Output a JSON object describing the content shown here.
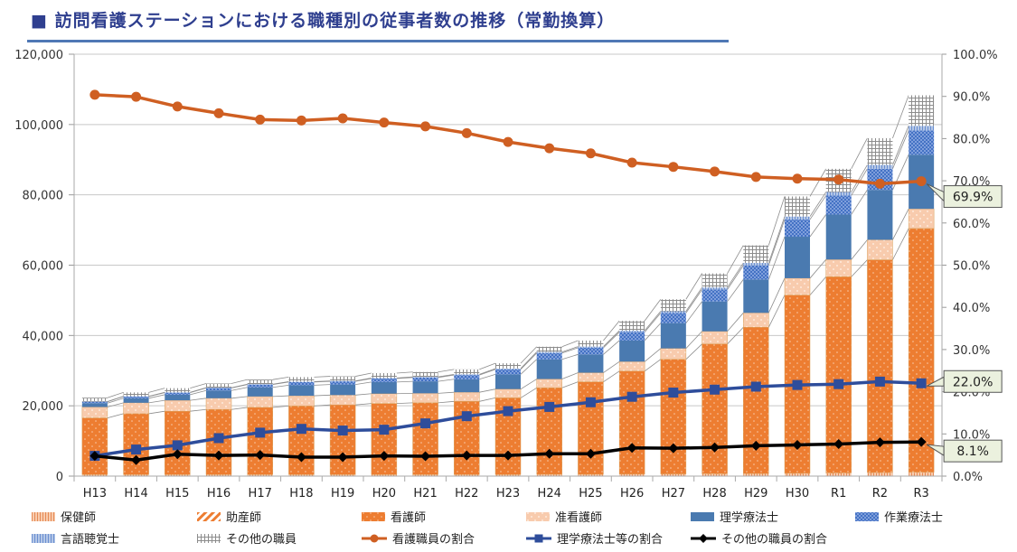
{
  "header": {
    "title": "■ 訪問看護ステーションにおける職種別の従事者数の推移（常勤換算）"
  },
  "chart_data": {
    "type": "bar",
    "title": "訪問看護ステーションにおける職種別の従事者数の推移（常勤換算）",
    "xlabel": "",
    "ylabel": "",
    "ylim": [
      0,
      120000
    ],
    "y2lim": [
      0,
      1.0
    ],
    "grid": true,
    "legend_position": "bottom",
    "y_ticks": [
      "0",
      "20,000",
      "40,000",
      "60,000",
      "80,000",
      "100,000",
      "120,000"
    ],
    "y2_ticks": [
      "0.0%",
      "10.0%",
      "20.0%",
      "30.0%",
      "40.0%",
      "50.0%",
      "60.0%",
      "70.0%",
      "80.0%",
      "90.0%",
      "100.0%"
    ],
    "categories": [
      "H13",
      "H14",
      "H15",
      "H16",
      "H17",
      "H18",
      "H19",
      "H20",
      "H21",
      "H22",
      "H23",
      "H24",
      "H25",
      "H26",
      "H27",
      "H28",
      "H29",
      "H30",
      "R1",
      "R2",
      "R3"
    ],
    "bar_series": [
      {
        "name": "保健師",
        "color": "#f4b183",
        "pattern": "vlines",
        "values": [
          400,
          400,
          400,
          400,
          400,
          400,
          400,
          400,
          400,
          400,
          400,
          450,
          450,
          500,
          550,
          600,
          650,
          700,
          800,
          900,
          1000
        ]
      },
      {
        "name": "助産師",
        "color": "#ed7d31",
        "pattern": "diag",
        "values": [
          50,
          50,
          50,
          50,
          50,
          50,
          50,
          50,
          50,
          50,
          50,
          60,
          60,
          60,
          70,
          70,
          80,
          90,
          100,
          110,
          120
        ]
      },
      {
        "name": "看護師",
        "color": "#ed7d31",
        "pattern": "dots",
        "values": [
          16100,
          17300,
          18000,
          18500,
          19100,
          19500,
          19800,
          20200,
          20400,
          20800,
          21800,
          24600,
          26300,
          29300,
          32600,
          36900,
          41600,
          50700,
          55800,
          60500,
          69300
        ]
      },
      {
        "name": "准看護師",
        "color": "#f8cbad",
        "pattern": "dots",
        "values": [
          3100,
          3100,
          3100,
          3200,
          3100,
          2900,
          2800,
          2800,
          2700,
          2600,
          2500,
          2500,
          2600,
          2700,
          3100,
          3600,
          4100,
          4800,
          4900,
          5700,
          5600
        ]
      },
      {
        "name": "理学療法士",
        "color": "#4a7ab0",
        "pattern": "solid",
        "values": [
          1100,
          1300,
          1600,
          2200,
          2600,
          3000,
          3000,
          3300,
          3400,
          3700,
          4200,
          5600,
          5200,
          6000,
          7200,
          8500,
          9500,
          11800,
          12800,
          14200,
          15400
        ]
      },
      {
        "name": "作業療法士",
        "color": "#4472c4",
        "pattern": "checker",
        "values": [
          400,
          500,
          600,
          700,
          800,
          900,
          900,
          1000,
          1100,
          1200,
          1400,
          1800,
          1900,
          2400,
          2900,
          3400,
          4000,
          4900,
          5400,
          6000,
          6900
        ]
      },
      {
        "name": "言語聴覚士",
        "color": "#8faadc",
        "pattern": "vlines",
        "values": [
          50,
          60,
          70,
          90,
          100,
          120,
          130,
          150,
          170,
          200,
          240,
          300,
          340,
          400,
          480,
          580,
          700,
          850,
          1000,
          1100,
          1300
        ]
      },
      {
        "name": "その他の職員",
        "color": "#a6a6a6",
        "pattern": "grid",
        "values": [
          1100,
          1100,
          1200,
          1200,
          1300,
          1300,
          1300,
          1400,
          1400,
          1400,
          1500,
          1500,
          1700,
          2800,
          3400,
          4000,
          5000,
          5700,
          6600,
          7600,
          8700
        ]
      }
    ],
    "line_series": [
      {
        "name": "看護職員の割合",
        "color": "#cf5f22",
        "marker": "circle",
        "axis": "right",
        "values": [
          0.904,
          0.899,
          0.876,
          0.86,
          0.845,
          0.843,
          0.848,
          0.838,
          0.829,
          0.813,
          0.792,
          0.777,
          0.765,
          0.743,
          0.733,
          0.722,
          0.709,
          0.705,
          0.703,
          0.693,
          0.699
        ]
      },
      {
        "name": "理学療法士等の割合",
        "color": "#2e4d9b",
        "marker": "square",
        "axis": "right",
        "values": [
          0.048,
          0.063,
          0.073,
          0.09,
          0.103,
          0.112,
          0.108,
          0.11,
          0.125,
          0.142,
          0.154,
          0.164,
          0.175,
          0.188,
          0.198,
          0.205,
          0.212,
          0.216,
          0.218,
          0.224,
          0.22
        ]
      },
      {
        "name": "その他の職員の割合",
        "color": "#000000",
        "marker": "diamond",
        "axis": "right",
        "values": [
          0.048,
          0.038,
          0.052,
          0.049,
          0.05,
          0.045,
          0.045,
          0.048,
          0.047,
          0.049,
          0.049,
          0.053,
          0.053,
          0.067,
          0.066,
          0.068,
          0.072,
          0.074,
          0.076,
          0.08,
          0.081
        ]
      }
    ],
    "annotations": [
      {
        "series": "看護職員の割合",
        "category": "R3",
        "text": "69.9%"
      },
      {
        "series": "理学療法士等の割合",
        "category": "R3",
        "text": "22.0%"
      },
      {
        "series": "その他の職員の割合",
        "category": "R3",
        "text": "8.1%"
      }
    ]
  },
  "legend": {
    "items": [
      {
        "label": "保健師",
        "kind": "bar",
        "series": 0
      },
      {
        "label": "助産師",
        "kind": "bar",
        "series": 1
      },
      {
        "label": "看護師",
        "kind": "bar",
        "series": 2
      },
      {
        "label": "准看護師",
        "kind": "bar",
        "series": 3
      },
      {
        "label": "理学療法士",
        "kind": "bar",
        "series": 4
      },
      {
        "label": "作業療法士",
        "kind": "bar",
        "series": 5
      },
      {
        "label": "言語聴覚士",
        "kind": "bar",
        "series": 6
      },
      {
        "label": "その他の職員",
        "kind": "bar",
        "series": 7
      },
      {
        "label": "看護職員の割合",
        "kind": "line",
        "series": 0
      },
      {
        "label": "理学療法士等の割合",
        "kind": "line",
        "series": 1
      },
      {
        "label": "その他の職員の割合",
        "kind": "line",
        "series": 2
      }
    ]
  }
}
